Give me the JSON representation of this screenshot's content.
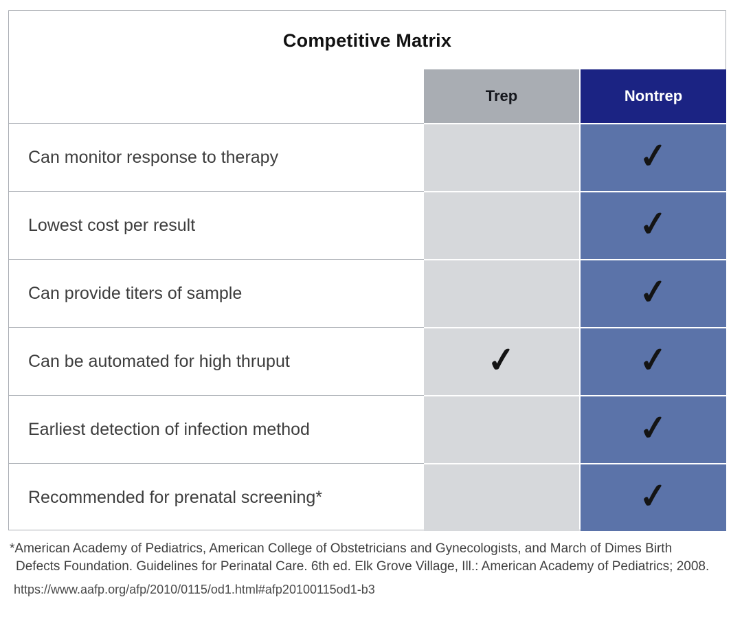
{
  "chart_data": {
    "type": "table",
    "title": "Competitive Matrix",
    "columns": [
      "Trep",
      "Nontrep"
    ],
    "rows": [
      "Can monitor response to therapy",
      "Lowest cost per result",
      "Can provide titers of sample",
      "Can be automated for high thruput",
      "Earliest detection of infection method",
      "Recommended for prenatal screening*"
    ],
    "values": [
      [
        false,
        true
      ],
      [
        false,
        true
      ],
      [
        false,
        true
      ],
      [
        true,
        true
      ],
      [
        false,
        true
      ],
      [
        false,
        true
      ]
    ],
    "legend_position": "none"
  },
  "check_glyph": "✓",
  "footnote": {
    "line1": "*American Academy of Pediatrics, American College of Obstetricians and Gynecologists, and March of Dimes Birth",
    "line2": "Defects Foundation. Guidelines for Perinatal Care. 6th ed. Elk Grove Village, Ill.: American Academy of Pediatrics; 2008."
  },
  "source_url": "https://www.aafp.org/afp/2010/0115/od1.html#afp20100115od1-b3",
  "colors": {
    "trep_header_bg": "#a9adb3",
    "nontrep_header_bg": "#1b2383",
    "trep_cell_bg": "#d6d8db",
    "nontrep_cell_bg": "#5b73a9",
    "divider": "#a9adb3",
    "check": "#141414",
    "text": "#3d3d3d"
  }
}
